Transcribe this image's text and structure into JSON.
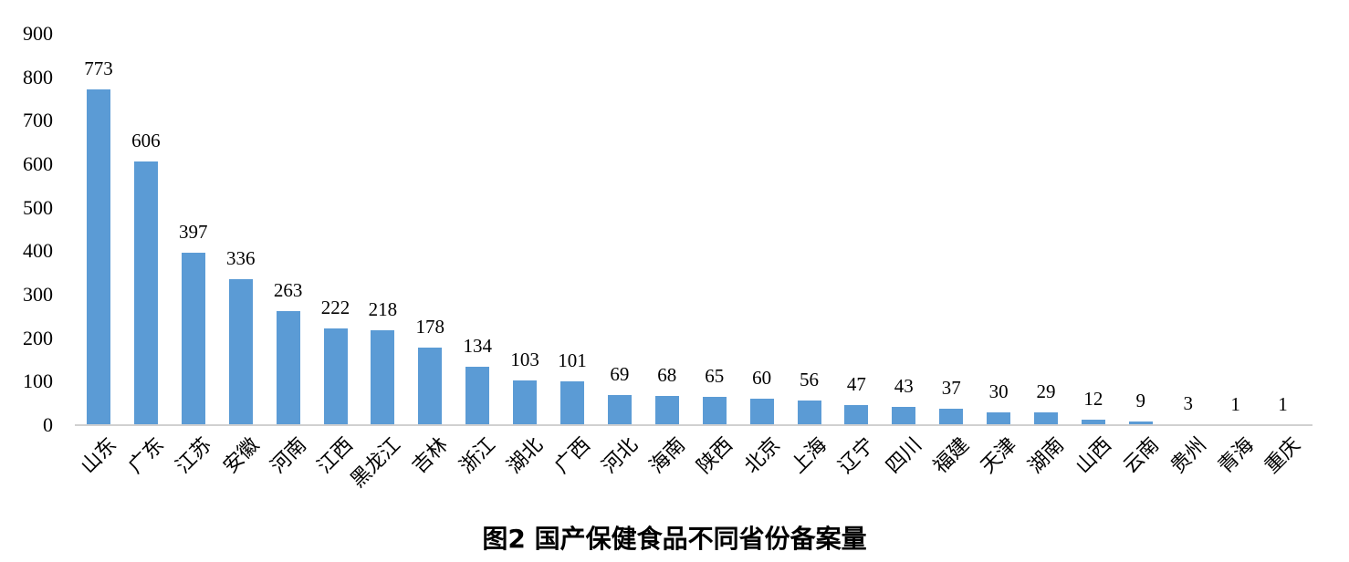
{
  "chart_data": {
    "type": "bar",
    "title": "图2 国产保健食品不同省份备案量",
    "xlabel": "",
    "ylabel": "",
    "ylim": [
      0,
      900
    ],
    "yticks": [
      0,
      100,
      200,
      300,
      400,
      500,
      600,
      700,
      800,
      900
    ],
    "grid": false,
    "legend": null,
    "bar_color": "#5b9bd5",
    "axis_color": "#d0d0d0",
    "data_labels": true,
    "categories": [
      "山东",
      "广东",
      "江苏",
      "安徽",
      "河南",
      "江西",
      "黑龙江",
      "吉林",
      "浙江",
      "湖北",
      "广西",
      "河北",
      "海南",
      "陕西",
      "北京",
      "上海",
      "辽宁",
      "四川",
      "福建",
      "天津",
      "湖南",
      "山西",
      "云南",
      "贵州",
      "青海",
      "重庆"
    ],
    "values": [
      773,
      606,
      397,
      336,
      263,
      222,
      218,
      178,
      134,
      103,
      101,
      69,
      68,
      65,
      60,
      56,
      47,
      43,
      37,
      30,
      29,
      12,
      9,
      3,
      1,
      1
    ]
  }
}
